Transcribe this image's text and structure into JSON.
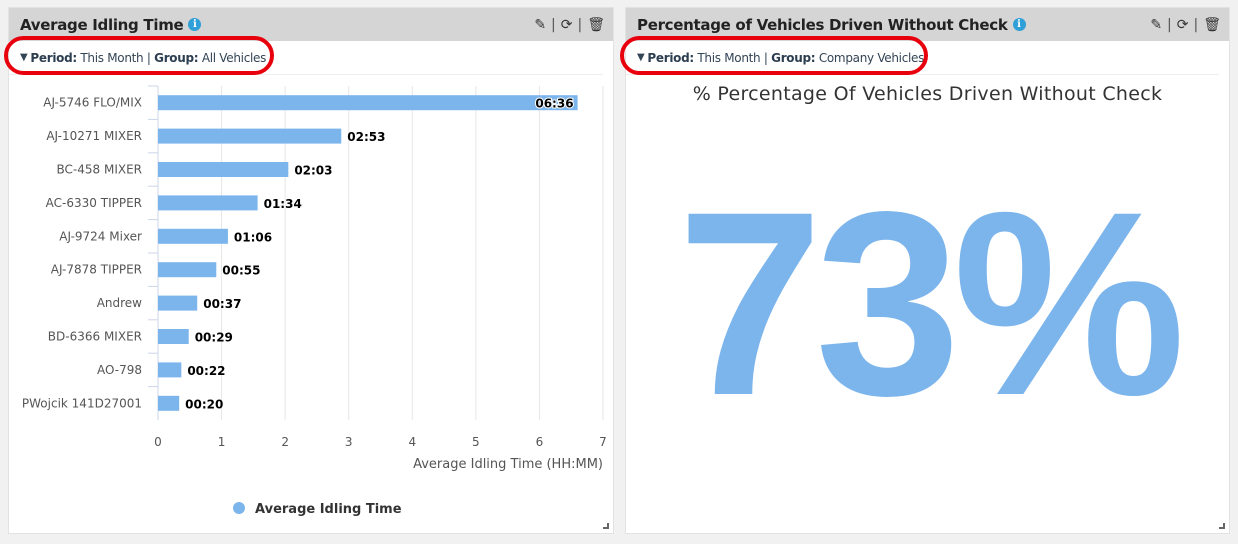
{
  "left_widget": {
    "title": "Average Idling Time",
    "filter": {
      "period_label": "Period:",
      "period_value": "This Month",
      "group_label": "Group:",
      "group_value": "All Vehicles"
    }
  },
  "right_widget": {
    "title": "Percentage of Vehicles Driven Without Check",
    "filter": {
      "period_label": "Period:",
      "period_value": "This Month",
      "group_label": "Group:",
      "group_value": "Company Vehicles"
    },
    "subtitle": "% Percentage Of Vehicles Driven Without Check",
    "value": "73%"
  },
  "colors": {
    "bar": "#7cb5ec",
    "highlight": "#e8000d"
  },
  "chart_data": {
    "type": "bar",
    "orientation": "horizontal",
    "categories": [
      "AJ-5746 FLO/MIX",
      "AJ-10271 MIXER",
      "BC-458 MIXER",
      "AC-6330 TIPPER",
      "AJ-9724 Mixer",
      "AJ-7878 TIPPER",
      "Andrew",
      "BD-6366 MIXER",
      "AO-798",
      "PWojcik 141D27001"
    ],
    "series": [
      {
        "name": "Average Idling Time",
        "values": [
          6.6,
          2.883,
          2.05,
          1.567,
          1.1,
          0.917,
          0.617,
          0.483,
          0.367,
          0.333
        ],
        "labels": [
          "06:36",
          "02:53",
          "02:03",
          "01:34",
          "01:06",
          "00:55",
          "00:37",
          "00:29",
          "00:22",
          "00:20"
        ]
      }
    ],
    "xlabel": "Average Idling Time (HH:MM)",
    "xticks": [
      "0",
      "1",
      "2",
      "3",
      "4",
      "5",
      "6",
      "7"
    ],
    "xlim": [
      0,
      7
    ],
    "grid": true,
    "legend": "bottom"
  }
}
